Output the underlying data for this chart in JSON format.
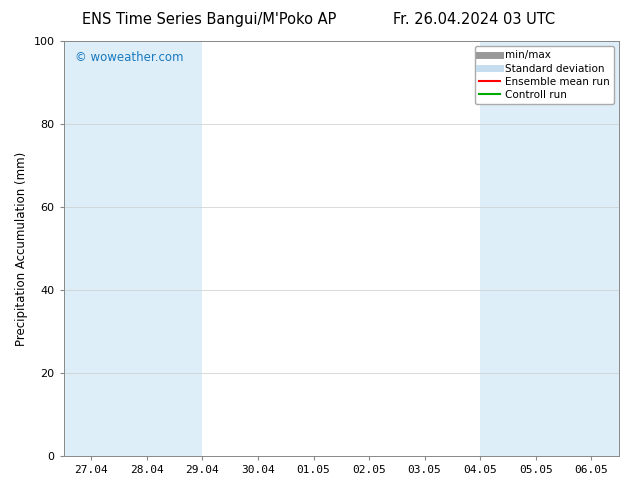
{
  "title_left": "ENS Time Series Bangui/M'Poko AP",
  "title_right": "Fr. 26.04.2024 03 UTC",
  "ylabel": "Precipitation Accumulation (mm)",
  "ylim": [
    0,
    100
  ],
  "yticks": [
    0,
    20,
    40,
    60,
    80,
    100
  ],
  "xtick_labels": [
    "27.04",
    "28.04",
    "29.04",
    "30.04",
    "01.05",
    "02.05",
    "03.05",
    "04.05",
    "05.05",
    "06.05"
  ],
  "background_color": "#ffffff",
  "plot_bg_color": "#ffffff",
  "watermark": "© woweather.com",
  "watermark_color": "#1a7abf",
  "shade_color": "#ddeef8",
  "legend_entries": [
    {
      "label": "min/max",
      "color": "#999999",
      "style": "solid",
      "lw": 5
    },
    {
      "label": "Standard deviation",
      "color": "#c5ddef",
      "style": "solid",
      "lw": 5
    },
    {
      "label": "Ensemble mean run",
      "color": "#ff0000",
      "style": "solid",
      "lw": 1.5
    },
    {
      "label": "Controll run",
      "color": "#00aa00",
      "style": "solid",
      "lw": 1.5
    }
  ],
  "font_size_title": 10.5,
  "font_size_axis": 8.5,
  "font_size_tick": 8,
  "font_size_legend": 7.5,
  "font_size_watermark": 8.5
}
